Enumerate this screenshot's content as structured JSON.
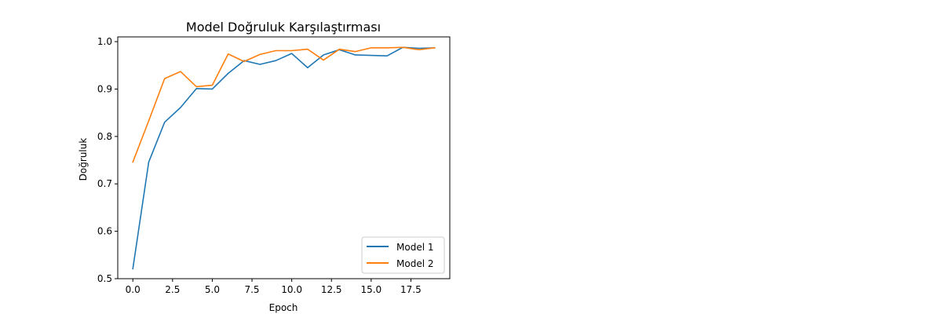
{
  "chart_data": {
    "type": "line",
    "title": "Model Doğruluk Karşılaştırması",
    "xlabel": "Epoch",
    "ylabel": "Doğruluk",
    "xlim": [
      -0.95,
      19.95
    ],
    "ylim": [
      0.5,
      1.01
    ],
    "xticks": [
      0,
      2.5,
      5,
      7.5,
      10,
      12.5,
      15,
      17.5
    ],
    "xtick_labels": [
      "0.0",
      "2.5",
      "5.0",
      "7.5",
      "10.0",
      "12.5",
      "15.0",
      "17.5"
    ],
    "yticks": [
      0.5,
      0.6,
      0.7,
      0.8,
      0.9,
      1.0
    ],
    "ytick_labels": [
      "0.5",
      "0.6",
      "0.7",
      "0.8",
      "0.9",
      "1.0"
    ],
    "grid": false,
    "legend": "lower-right",
    "x": [
      0,
      1,
      2,
      3,
      4,
      5,
      6,
      7,
      8,
      9,
      10,
      11,
      12,
      13,
      14,
      15,
      16,
      17,
      18,
      19
    ],
    "series": [
      {
        "name": "Model 1",
        "color": "#1f77b4",
        "values": [
          0.521,
          0.746,
          0.83,
          0.861,
          0.901,
          0.9,
          0.933,
          0.96,
          0.952,
          0.96,
          0.975,
          0.945,
          0.972,
          0.983,
          0.972,
          0.971,
          0.97,
          0.988,
          0.986,
          0.987
        ]
      },
      {
        "name": "Model 2",
        "color": "#ff7f0e",
        "values": [
          0.746,
          0.833,
          0.922,
          0.937,
          0.905,
          0.908,
          0.974,
          0.958,
          0.973,
          0.981,
          0.981,
          0.984,
          0.961,
          0.984,
          0.979,
          0.987,
          0.987,
          0.988,
          0.983,
          0.987
        ]
      }
    ]
  }
}
